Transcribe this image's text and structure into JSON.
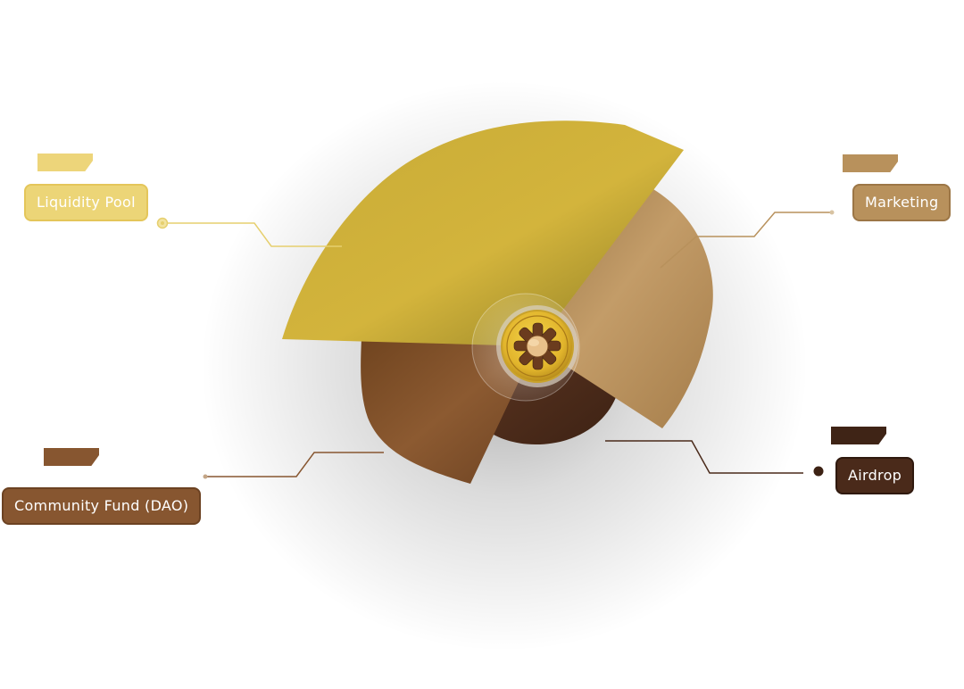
{
  "chart_data": {
    "type": "pie",
    "labels": [
      "Liquidity Pool",
      "Marketing",
      "Airdrop",
      "Community Fund (DAO)"
    ],
    "colors": {
      "liquidity_pool": "#c9ac34",
      "marketing": "#b8915c",
      "airdrop": "#4a2a1a",
      "community_fund": "#875630"
    },
    "center_icon": "joined-hands-coin-icon"
  },
  "labels": {
    "liquidity_pool": "Liquidity Pool",
    "marketing": "Marketing",
    "airdrop": "Airdrop",
    "community_fund": "Community Fund (DAO)"
  }
}
